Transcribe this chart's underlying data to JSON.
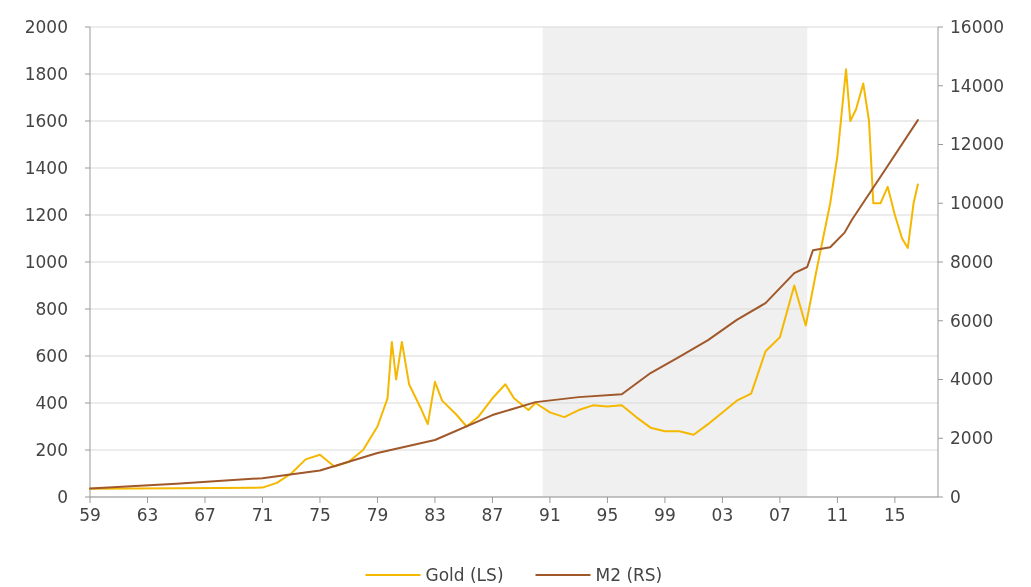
{
  "chart_data": {
    "type": "line",
    "x": [
      1959,
      1968,
      1971,
      1972,
      1973,
      1974,
      1975,
      1976,
      1977,
      1978,
      1979,
      1979.7,
      1980,
      1980.3,
      1980.7,
      1981.2,
      1982,
      1982.5,
      1983,
      1983.5,
      1984.5,
      1985.2,
      1986,
      1987,
      1987.9,
      1988.5,
      1989.5,
      1990,
      1991,
      1992,
      1993,
      1994,
      1995,
      1996,
      1997,
      1998,
      1999,
      2000,
      2001,
      2002,
      2003,
      2004,
      2005,
      2006,
      2007,
      2008,
      2008.8,
      2009.5,
      2010,
      2010.5,
      2011,
      2011.6,
      2011.9,
      2012.3,
      2012.8,
      2013.2,
      2013.5,
      2014,
      2014.5,
      2015,
      2015.5,
      2015.9,
      2016.3,
      2016.6
    ],
    "series": [
      {
        "name": "Gold (LS)",
        "color": "#f5b800",
        "values": [
          35,
          38,
          40,
          60,
          100,
          160,
          180,
          130,
          150,
          200,
          300,
          420,
          660,
          500,
          660,
          480,
          380,
          310,
          490,
          410,
          350,
          300,
          340,
          420,
          480,
          420,
          370,
          400,
          360,
          340,
          370,
          390,
          385,
          390,
          340,
          295,
          280,
          280,
          265,
          310,
          360,
          410,
          440,
          620,
          680,
          900,
          730,
          950,
          1100,
          1250,
          1450,
          1820,
          1600,
          1650,
          1760,
          1600,
          1250,
          1250,
          1320,
          1200,
          1100,
          1060,
          1250,
          1330
        ]
      },
      {
        "name": "M2 (RS)",
        "color": "#a0582a",
        "axis": "y2",
        "x": [
          1959,
          1965,
          1971,
          1975,
          1979,
          1983,
          1987,
          1990,
          1993,
          1996,
          1998,
          2000,
          2002,
          2004,
          2006,
          2008,
          2008.9,
          2009.3,
          2010.5,
          2011.5,
          2012,
          2014,
          2016.6
        ],
        "values": [
          290,
          450,
          640,
          900,
          1500,
          1940,
          2790,
          3230,
          3400,
          3500,
          4220,
          4770,
          5340,
          6030,
          6600,
          7620,
          7830,
          8400,
          8500,
          9000,
          9430,
          10900,
          12830
        ]
      }
    ],
    "xlim": [
      1959,
      2018
    ],
    "xticks": [
      {
        "value": 1959,
        "label": "59"
      },
      {
        "value": 1963,
        "label": "63"
      },
      {
        "value": 1967,
        "label": "67"
      },
      {
        "value": 1971,
        "label": "71"
      },
      {
        "value": 1975,
        "label": "75"
      },
      {
        "value": 1979,
        "label": "79"
      },
      {
        "value": 1983,
        "label": "83"
      },
      {
        "value": 1987,
        "label": "87"
      },
      {
        "value": 1991,
        "label": "91"
      },
      {
        "value": 1995,
        "label": "95"
      },
      {
        "value": 1999,
        "label": "99"
      },
      {
        "value": 2003,
        "label": "03"
      },
      {
        "value": 2007,
        "label": "07"
      },
      {
        "value": 2011,
        "label": "11"
      },
      {
        "value": 2015,
        "label": "15"
      }
    ],
    "ylim": [
      0,
      2000
    ],
    "yticks": [
      0,
      200,
      400,
      600,
      800,
      1000,
      1200,
      1400,
      1600,
      1800,
      2000
    ],
    "y2lim": [
      0,
      16000
    ],
    "y2ticks": [
      0,
      2000,
      4000,
      6000,
      8000,
      10000,
      12000,
      14000,
      16000
    ],
    "bands": [
      {
        "axis": "x",
        "from": 1990.5,
        "to": 2008.9,
        "color": "#f0f0f0"
      }
    ],
    "grid": "y",
    "legend": "bottom",
    "line_style": "solid",
    "marker": "none"
  }
}
